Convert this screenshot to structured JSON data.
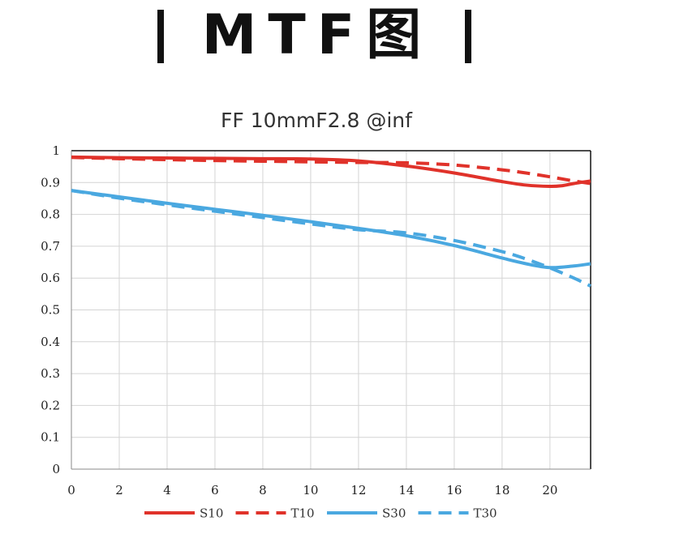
{
  "page": {
    "heading": "MTF图"
  },
  "chart_data": {
    "type": "line",
    "title": "FF 10mmF2.8 @inf",
    "xlabel": "",
    "ylabel": "",
    "xlim": [
      0,
      21.7
    ],
    "ylim": [
      0,
      1
    ],
    "x_ticks": [
      0,
      2,
      4,
      6,
      8,
      10,
      12,
      14,
      16,
      18,
      20
    ],
    "y_ticks": [
      0,
      0.1,
      0.2,
      0.3,
      0.4,
      0.5,
      0.6,
      0.7,
      0.8,
      0.9,
      1
    ],
    "y_tick_labels": [
      "0",
      "0.1",
      "0.2",
      "0.3",
      "0.4",
      "0.5",
      "0.6",
      "0.7",
      "0.8",
      "0.9",
      "1"
    ],
    "grid": true,
    "legend_position": "bottom",
    "series": [
      {
        "name": "S10",
        "color": "#e0322a",
        "dash": false,
        "x": [
          0,
          2,
          4,
          6,
          8,
          10,
          12,
          14,
          16,
          18,
          19,
          20,
          20.5,
          21,
          21.7
        ],
        "y": [
          0.98,
          0.978,
          0.977,
          0.976,
          0.975,
          0.974,
          0.968,
          0.952,
          0.93,
          0.903,
          0.892,
          0.888,
          0.89,
          0.897,
          0.905
        ]
      },
      {
        "name": "T10",
        "color": "#e0322a",
        "dash": true,
        "x": [
          0,
          2,
          4,
          6,
          8,
          10,
          12,
          14,
          16,
          18,
          19,
          20,
          21,
          21.7
        ],
        "y": [
          0.979,
          0.975,
          0.972,
          0.969,
          0.967,
          0.965,
          0.963,
          0.962,
          0.955,
          0.94,
          0.93,
          0.918,
          0.905,
          0.897
        ]
      },
      {
        "name": "S30",
        "color": "#4aa8e0",
        "dash": false,
        "x": [
          0,
          2,
          4,
          6,
          8,
          10,
          12,
          14,
          16,
          18,
          19,
          20,
          21,
          21.7
        ],
        "y": [
          0.875,
          0.855,
          0.835,
          0.816,
          0.797,
          0.777,
          0.756,
          0.733,
          0.702,
          0.663,
          0.645,
          0.633,
          0.638,
          0.645
        ]
      },
      {
        "name": "T30",
        "color": "#4aa8e0",
        "dash": true,
        "x": [
          0,
          2,
          4,
          6,
          8,
          10,
          12,
          14,
          16,
          18,
          19,
          20,
          21,
          21.7
        ],
        "y": [
          0.875,
          0.851,
          0.83,
          0.81,
          0.79,
          0.77,
          0.752,
          0.742,
          0.718,
          0.683,
          0.66,
          0.632,
          0.6,
          0.575
        ]
      }
    ]
  }
}
